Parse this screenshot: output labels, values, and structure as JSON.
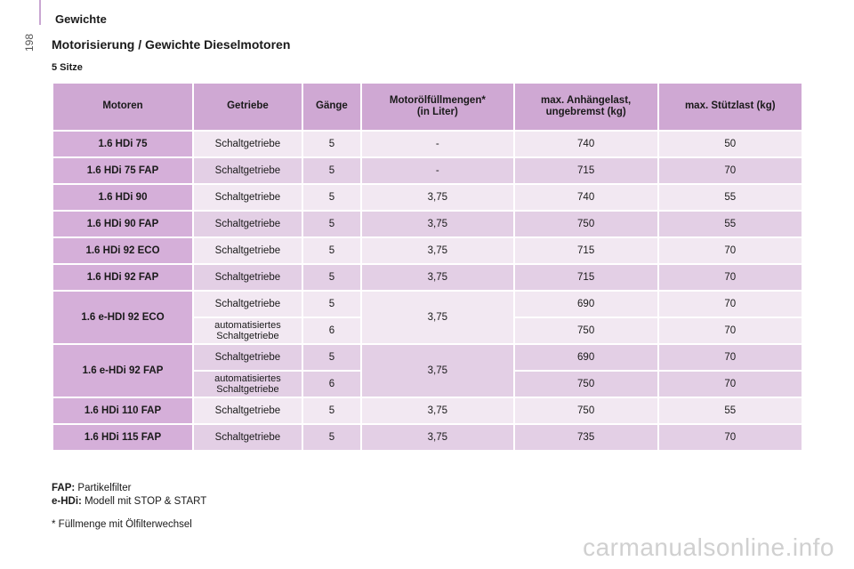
{
  "header": {
    "section": "Gewichte",
    "page_number": "198"
  },
  "title": "Motorisierung / Gewichte Dieselmotoren",
  "subtitle": "5 Sitze",
  "table": {
    "headers": [
      "Motoren",
      "Getriebe",
      "Gänge",
      "Motorölfüllmengen*\n(in Liter)",
      "max. Anhängelast,\nungebremst (kg)",
      "max. Stützlast (kg)"
    ],
    "rows": [
      {
        "motor": "1.6 HDi 75",
        "getriebe": "Schaltgetriebe",
        "gaenge": "5",
        "oel": "-",
        "anhaenge": "740",
        "stuetz": "50"
      },
      {
        "motor": "1.6 HDi 75 FAP",
        "getriebe": "Schaltgetriebe",
        "gaenge": "5",
        "oel": "-",
        "anhaenge": "715",
        "stuetz": "70"
      },
      {
        "motor": "1.6 HDi 90",
        "getriebe": "Schaltgetriebe",
        "gaenge": "5",
        "oel": "3,75",
        "anhaenge": "740",
        "stuetz": "55"
      },
      {
        "motor": "1.6 HDi 90 FAP",
        "getriebe": "Schaltgetriebe",
        "gaenge": "5",
        "oel": "3,75",
        "anhaenge": "750",
        "stuetz": "55"
      },
      {
        "motor": "1.6 HDi 92 ECO",
        "getriebe": "Schaltgetriebe",
        "gaenge": "5",
        "oel": "3,75",
        "anhaenge": "715",
        "stuetz": "70"
      },
      {
        "motor": "1.6 HDi 92 FAP",
        "getriebe": "Schaltgetriebe",
        "gaenge": "5",
        "oel": "3,75",
        "anhaenge": "715",
        "stuetz": "70"
      }
    ],
    "group1": {
      "motor": "1.6 e-HDI 92 ECO",
      "oel": "3,75",
      "a": {
        "getriebe": "Schaltgetriebe",
        "gaenge": "5",
        "anhaenge": "690",
        "stuetz": "70"
      },
      "b": {
        "getriebe": "automatisiertes\nSchaltgetriebe",
        "gaenge": "6",
        "anhaenge": "750",
        "stuetz": "70"
      }
    },
    "group2": {
      "motor": "1.6 e-HDi 92 FAP",
      "oel": "3,75",
      "a": {
        "getriebe": "Schaltgetriebe",
        "gaenge": "5",
        "anhaenge": "690",
        "stuetz": "70"
      },
      "b": {
        "getriebe": "automatisiertes\nSchaltgetriebe",
        "gaenge": "6",
        "anhaenge": "750",
        "stuetz": "70"
      }
    },
    "rows_end": [
      {
        "motor": "1.6 HDi 110 FAP",
        "getriebe": "Schaltgetriebe",
        "gaenge": "5",
        "oel": "3,75",
        "anhaenge": "750",
        "stuetz": "55"
      },
      {
        "motor": "1.6 HDi 115 FAP",
        "getriebe": "Schaltgetriebe",
        "gaenge": "5",
        "oel": "3,75",
        "anhaenge": "735",
        "stuetz": "70"
      }
    ]
  },
  "footnotes": {
    "fap_label": "FAP:",
    "fap_text": " Partikelfilter",
    "ehdi_label": "e-HDi:",
    "ehdi_text": " Modell mit STOP & START",
    "star": "* Füllmenge mit Ölfilterwechsel"
  },
  "watermark": "carmanualsonline.info",
  "colors": {
    "header_bg": "#cfa8d3",
    "motor_bg": "#d5afd9",
    "row_light": "#f2e8f2",
    "row_dark": "#e3cfe5"
  }
}
